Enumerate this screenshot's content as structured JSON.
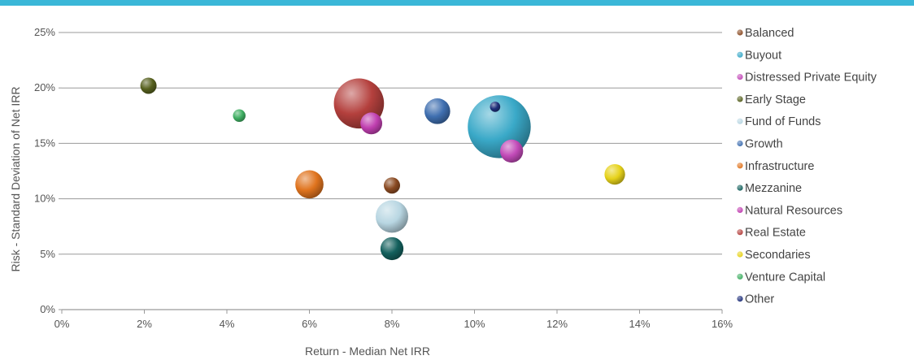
{
  "colors": {
    "accent": "#3ab7d8",
    "gridline": "#9a9a9a"
  },
  "chart_data": {
    "type": "scatter",
    "variant": "bubble",
    "title": "",
    "xlabel": "Return - Median Net IRR",
    "ylabel": "Risk - Standard Deviation of Net IRR",
    "xlim": [
      0,
      16
    ],
    "ylim": [
      0,
      25
    ],
    "x_ticks": [
      "0%",
      "2%",
      "4%",
      "6%",
      "8%",
      "10%",
      "12%",
      "14%",
      "16%"
    ],
    "y_ticks": [
      "0%",
      "5%",
      "10%",
      "15%",
      "20%",
      "25%"
    ],
    "grid": "horizontal",
    "legend_position": "right",
    "series": [
      {
        "name": "Balanced",
        "color": "#8a4a22",
        "x": 8.0,
        "y": 11.2,
        "size": 1
      },
      {
        "name": "Buyout",
        "color": "#3aa9c8",
        "x": 10.6,
        "y": 16.5,
        "size": 15
      },
      {
        "name": "Distressed Private Equity",
        "color": "#c24ab8",
        "x": 10.9,
        "y": 14.3,
        "size": 2
      },
      {
        "name": "Early Stage",
        "color": "#56601e",
        "x": 2.1,
        "y": 20.2,
        "size": 1
      },
      {
        "name": "Fund of Funds",
        "color": "#b8d6e2",
        "x": 8.0,
        "y": 8.4,
        "size": 4
      },
      {
        "name": "Growth",
        "color": "#3f6fb0",
        "x": 9.1,
        "y": 17.9,
        "size": 2.5
      },
      {
        "name": "Infrastructure",
        "color": "#e0741e",
        "x": 6.0,
        "y": 11.3,
        "size": 3
      },
      {
        "name": "Mezzanine",
        "color": "#13605d",
        "x": 8.0,
        "y": 5.5,
        "size": 2
      },
      {
        "name": "Natural Resources",
        "color": "#c03fb0",
        "x": 7.5,
        "y": 16.8,
        "size": 1.8
      },
      {
        "name": "Real Estate",
        "color": "#b4403d",
        "x": 7.2,
        "y": 18.6,
        "size": 9.5
      },
      {
        "name": "Secondaries",
        "color": "#e6d21a",
        "x": 13.4,
        "y": 12.2,
        "size": 1.6
      },
      {
        "name": "Venture Capital",
        "color": "#3fae62",
        "x": 4.3,
        "y": 17.5,
        "size": 0.6
      },
      {
        "name": "Other",
        "color": "#1f2f7a",
        "x": 10.5,
        "y": 18.3,
        "size": 0.4
      }
    ]
  }
}
